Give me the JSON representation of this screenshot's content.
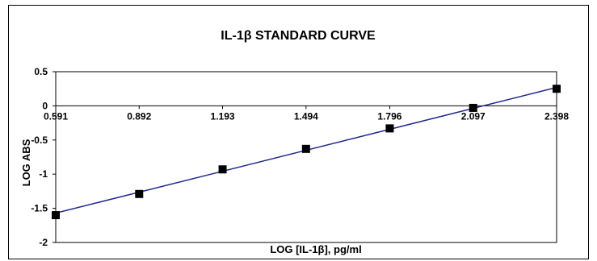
{
  "chart_data": {
    "type": "scatter",
    "title": "IL-1β STANDARD CURVE",
    "xlabel": "LOG [IL-1β], pg/ml",
    "ylabel": "LOG ABS",
    "x_ticks": [
      "0.591",
      "0.892",
      "1.193",
      "1.494",
      "1.796",
      "2.097",
      "2.398"
    ],
    "x_tick_values": [
      0.591,
      0.892,
      1.193,
      1.494,
      1.796,
      2.097,
      2.398
    ],
    "y_ticks": [
      "0.5",
      "0",
      "-0.5",
      "-1",
      "-1.5",
      "-2"
    ],
    "y_tick_values": [
      0.5,
      0,
      -0.5,
      -1,
      -1.5,
      -2
    ],
    "xlim": [
      0.591,
      2.398
    ],
    "ylim": [
      -2,
      0.5
    ],
    "series": [
      {
        "x": [
          0.591,
          0.892,
          1.193,
          1.494,
          1.796,
          2.097,
          2.398
        ],
        "y": [
          -1.6,
          -1.29,
          -0.93,
          -0.63,
          -0.33,
          -0.03,
          0.25
        ]
      }
    ],
    "trendline": {
      "x": [
        0.591,
        2.398
      ],
      "y": [
        -1.57,
        0.27
      ]
    },
    "colors": {
      "line": "#1f2a8c",
      "marker": "#000000"
    },
    "grid": false
  }
}
